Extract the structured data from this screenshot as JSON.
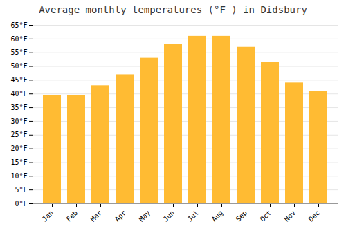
{
  "chart_data": {
    "type": "bar",
    "title": "Average monthly temperatures (°F ) in Didsbury",
    "categories": [
      "Jan",
      "Feb",
      "Mar",
      "Apr",
      "May",
      "Jun",
      "Jul",
      "Aug",
      "Sep",
      "Oct",
      "Nov",
      "Dec"
    ],
    "values": [
      39.5,
      39.5,
      43.0,
      47.0,
      53.0,
      58.0,
      61.0,
      61.0,
      57.0,
      51.5,
      44.0,
      41.0
    ],
    "color": "#FFBB33",
    "ylim": [
      0,
      65
    ],
    "yticks": [
      {
        "value": 0,
        "label": "0°F"
      },
      {
        "value": 5,
        "label": "5°F"
      },
      {
        "value": 10,
        "label": "10°F"
      },
      {
        "value": 15,
        "label": "15°F"
      },
      {
        "value": 20,
        "label": "20°F"
      },
      {
        "value": 25,
        "label": "25°F"
      },
      {
        "value": 30,
        "label": "30°F"
      },
      {
        "value": 35,
        "label": "35°F"
      },
      {
        "value": 40,
        "label": "40°F"
      },
      {
        "value": 45,
        "label": "45°F"
      },
      {
        "value": 50,
        "label": "50°F"
      },
      {
        "value": 55,
        "label": "55°F"
      },
      {
        "value": 60,
        "label": "60°F"
      },
      {
        "value": 65,
        "label": "65°F"
      }
    ],
    "grid": true
  }
}
